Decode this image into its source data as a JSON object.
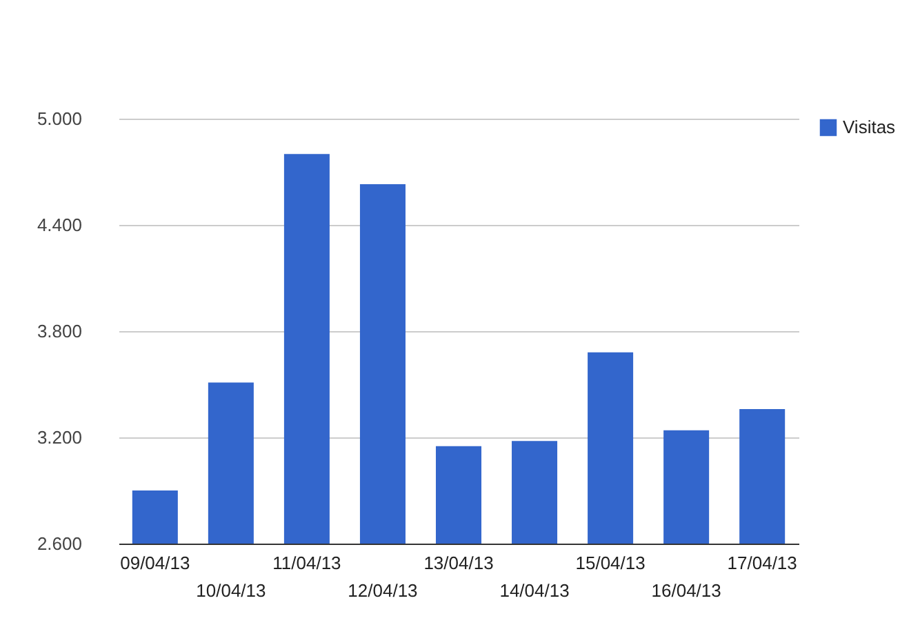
{
  "chart_data": {
    "type": "bar",
    "categories": [
      "09/04/13",
      "10/04/13",
      "11/04/13",
      "12/04/13",
      "13/04/13",
      "14/04/13",
      "15/04/13",
      "16/04/13",
      "17/04/13"
    ],
    "series": [
      {
        "name": "Visitas",
        "color": "#3366cc",
        "values": [
          2900,
          3510,
          4800,
          4630,
          3150,
          3180,
          3680,
          3240,
          3360
        ]
      }
    ],
    "ylim": [
      2600,
      5000
    ],
    "yticks": [
      {
        "value": 2600,
        "label": "2.600"
      },
      {
        "value": 3200,
        "label": "3.200"
      },
      {
        "value": 3800,
        "label": "3.800"
      },
      {
        "value": 4400,
        "label": "4.400"
      },
      {
        "value": 5000,
        "label": "5.000"
      }
    ],
    "grid": "y",
    "legend": "top right"
  }
}
